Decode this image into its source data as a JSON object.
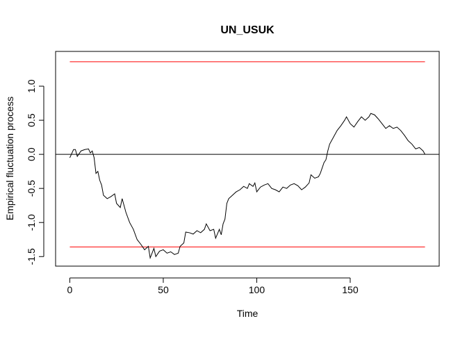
{
  "chart_data": {
    "type": "line",
    "title": "UN_USUK",
    "x_label": "Time",
    "y_label": "Empirical fluctuation process",
    "xlim": [
      -7.6,
      197.6
    ],
    "ylim": [
      -1.64,
      1.51
    ],
    "xticks": [
      0,
      50,
      100,
      150
    ],
    "yticks": [
      -1.5,
      {
        "value": -1.0,
        "label": "-1.0"
      },
      -0.5,
      {
        "value": 0.0,
        "label": "0.0"
      },
      0.5,
      {
        "value": 1.0,
        "label": "1.0"
      }
    ],
    "hlines": [
      {
        "value": 1.358,
        "color": "#ff0000",
        "span": "data"
      },
      {
        "value": -1.358,
        "color": "#ff0000",
        "span": "data"
      },
      {
        "value": 0,
        "color": "#000000",
        "span": "full"
      }
    ],
    "series": [
      {
        "color": "#000000",
        "x": [
          0,
          2,
          3,
          4,
          6,
          8,
          10,
          11,
          12,
          13,
          14,
          15,
          16,
          17,
          18,
          20,
          22,
          24,
          25,
          27,
          28,
          30,
          32,
          34,
          36,
          38,
          40,
          42,
          43,
          45,
          46,
          48,
          50,
          52,
          54,
          56,
          58,
          59,
          61,
          62,
          64,
          66,
          68,
          70,
          72,
          73,
          75,
          77,
          78,
          80,
          81,
          82,
          83,
          84,
          85,
          87,
          89,
          91,
          93,
          95,
          96,
          98,
          99,
          100,
          102,
          104,
          106,
          108,
          110,
          112,
          114,
          116,
          118,
          120,
          122,
          124,
          126,
          128,
          129,
          131,
          133,
          134,
          136,
          137,
          138,
          139,
          141,
          143,
          145,
          147,
          148,
          150,
          152,
          154,
          156,
          158,
          160,
          161,
          163,
          165,
          167,
          169,
          171,
          173,
          175,
          177,
          179,
          181,
          183,
          185,
          187,
          189,
          190
        ],
        "values": [
          -0.05,
          0.07,
          0.07,
          -0.03,
          0.05,
          0.07,
          0.08,
          0.02,
          0.05,
          -0.05,
          -0.28,
          -0.25,
          -0.38,
          -0.45,
          -0.6,
          -0.65,
          -0.62,
          -0.58,
          -0.72,
          -0.78,
          -0.65,
          -0.85,
          -1.0,
          -1.1,
          -1.25,
          -1.32,
          -1.4,
          -1.35,
          -1.52,
          -1.38,
          -1.5,
          -1.42,
          -1.4,
          -1.45,
          -1.43,
          -1.47,
          -1.45,
          -1.35,
          -1.3,
          -1.14,
          -1.15,
          -1.17,
          -1.12,
          -1.15,
          -1.1,
          -1.02,
          -1.12,
          -1.1,
          -1.23,
          -1.1,
          -1.18,
          -1.02,
          -0.95,
          -0.72,
          -0.65,
          -0.6,
          -0.55,
          -0.52,
          -0.47,
          -0.5,
          -0.43,
          -0.47,
          -0.42,
          -0.55,
          -0.48,
          -0.45,
          -0.43,
          -0.5,
          -0.52,
          -0.55,
          -0.48,
          -0.5,
          -0.45,
          -0.43,
          -0.46,
          -0.52,
          -0.48,
          -0.42,
          -0.3,
          -0.35,
          -0.33,
          -0.28,
          -0.12,
          -0.08,
          0.05,
          0.15,
          0.25,
          0.35,
          0.42,
          0.5,
          0.55,
          0.45,
          0.4,
          0.48,
          0.55,
          0.5,
          0.55,
          0.6,
          0.58,
          0.52,
          0.45,
          0.38,
          0.42,
          0.38,
          0.4,
          0.35,
          0.28,
          0.2,
          0.15,
          0.08,
          0.1,
          0.05,
          0.0
        ]
      }
    ]
  }
}
